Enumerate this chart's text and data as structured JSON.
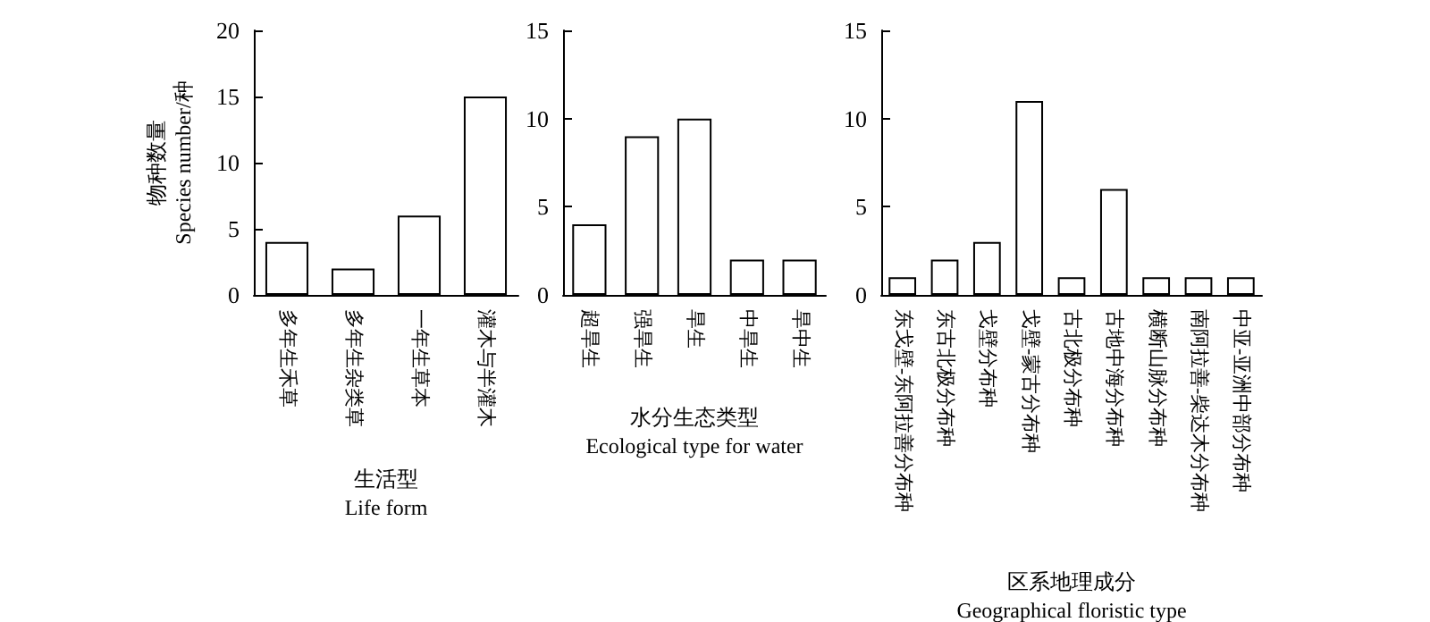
{
  "chart_data": [
    {
      "type": "bar",
      "xlabel": "生活型\nLife form",
      "ylabel": "物种数量\nSpecies number/种",
      "categories": [
        "多年生禾草",
        "多年生杂类草",
        "一年生草本",
        "灌木与半灌木"
      ],
      "values": [
        4,
        2,
        6,
        15
      ],
      "color": "#ffffff",
      "ylim": [
        0,
        20
      ],
      "yticks": [
        0,
        5,
        10,
        15,
        20
      ],
      "grid": false
    },
    {
      "type": "bar",
      "xlabel": "水分生态类型\nEcological type for water",
      "categories": [
        "超旱生",
        "强旱生",
        "旱生",
        "中旱生",
        "旱中生"
      ],
      "values": [
        4,
        9,
        10,
        2,
        2
      ],
      "color": "#ffffff",
      "ylim": [
        0,
        15
      ],
      "yticks": [
        0,
        5,
        10,
        15
      ],
      "grid": false
    },
    {
      "type": "bar",
      "xlabel": "区系地理成分\nGeographical floristic type",
      "categories": [
        "东戈壁-东阿拉善分布种",
        "东古北极分布种",
        "戈壁分布种",
        "戈壁-蒙古分布种",
        "古北极分布种",
        "古地中海分布种",
        "横断山脉分布种",
        "南阿拉善-柴达木分布种",
        "中亚-亚洲中部分布种"
      ],
      "values": [
        1,
        2,
        3,
        11,
        1,
        6,
        1,
        1,
        1
      ],
      "color": "#ffffff",
      "ylim": [
        0,
        15
      ],
      "yticks": [
        0,
        5,
        10,
        15
      ],
      "grid": false
    }
  ]
}
